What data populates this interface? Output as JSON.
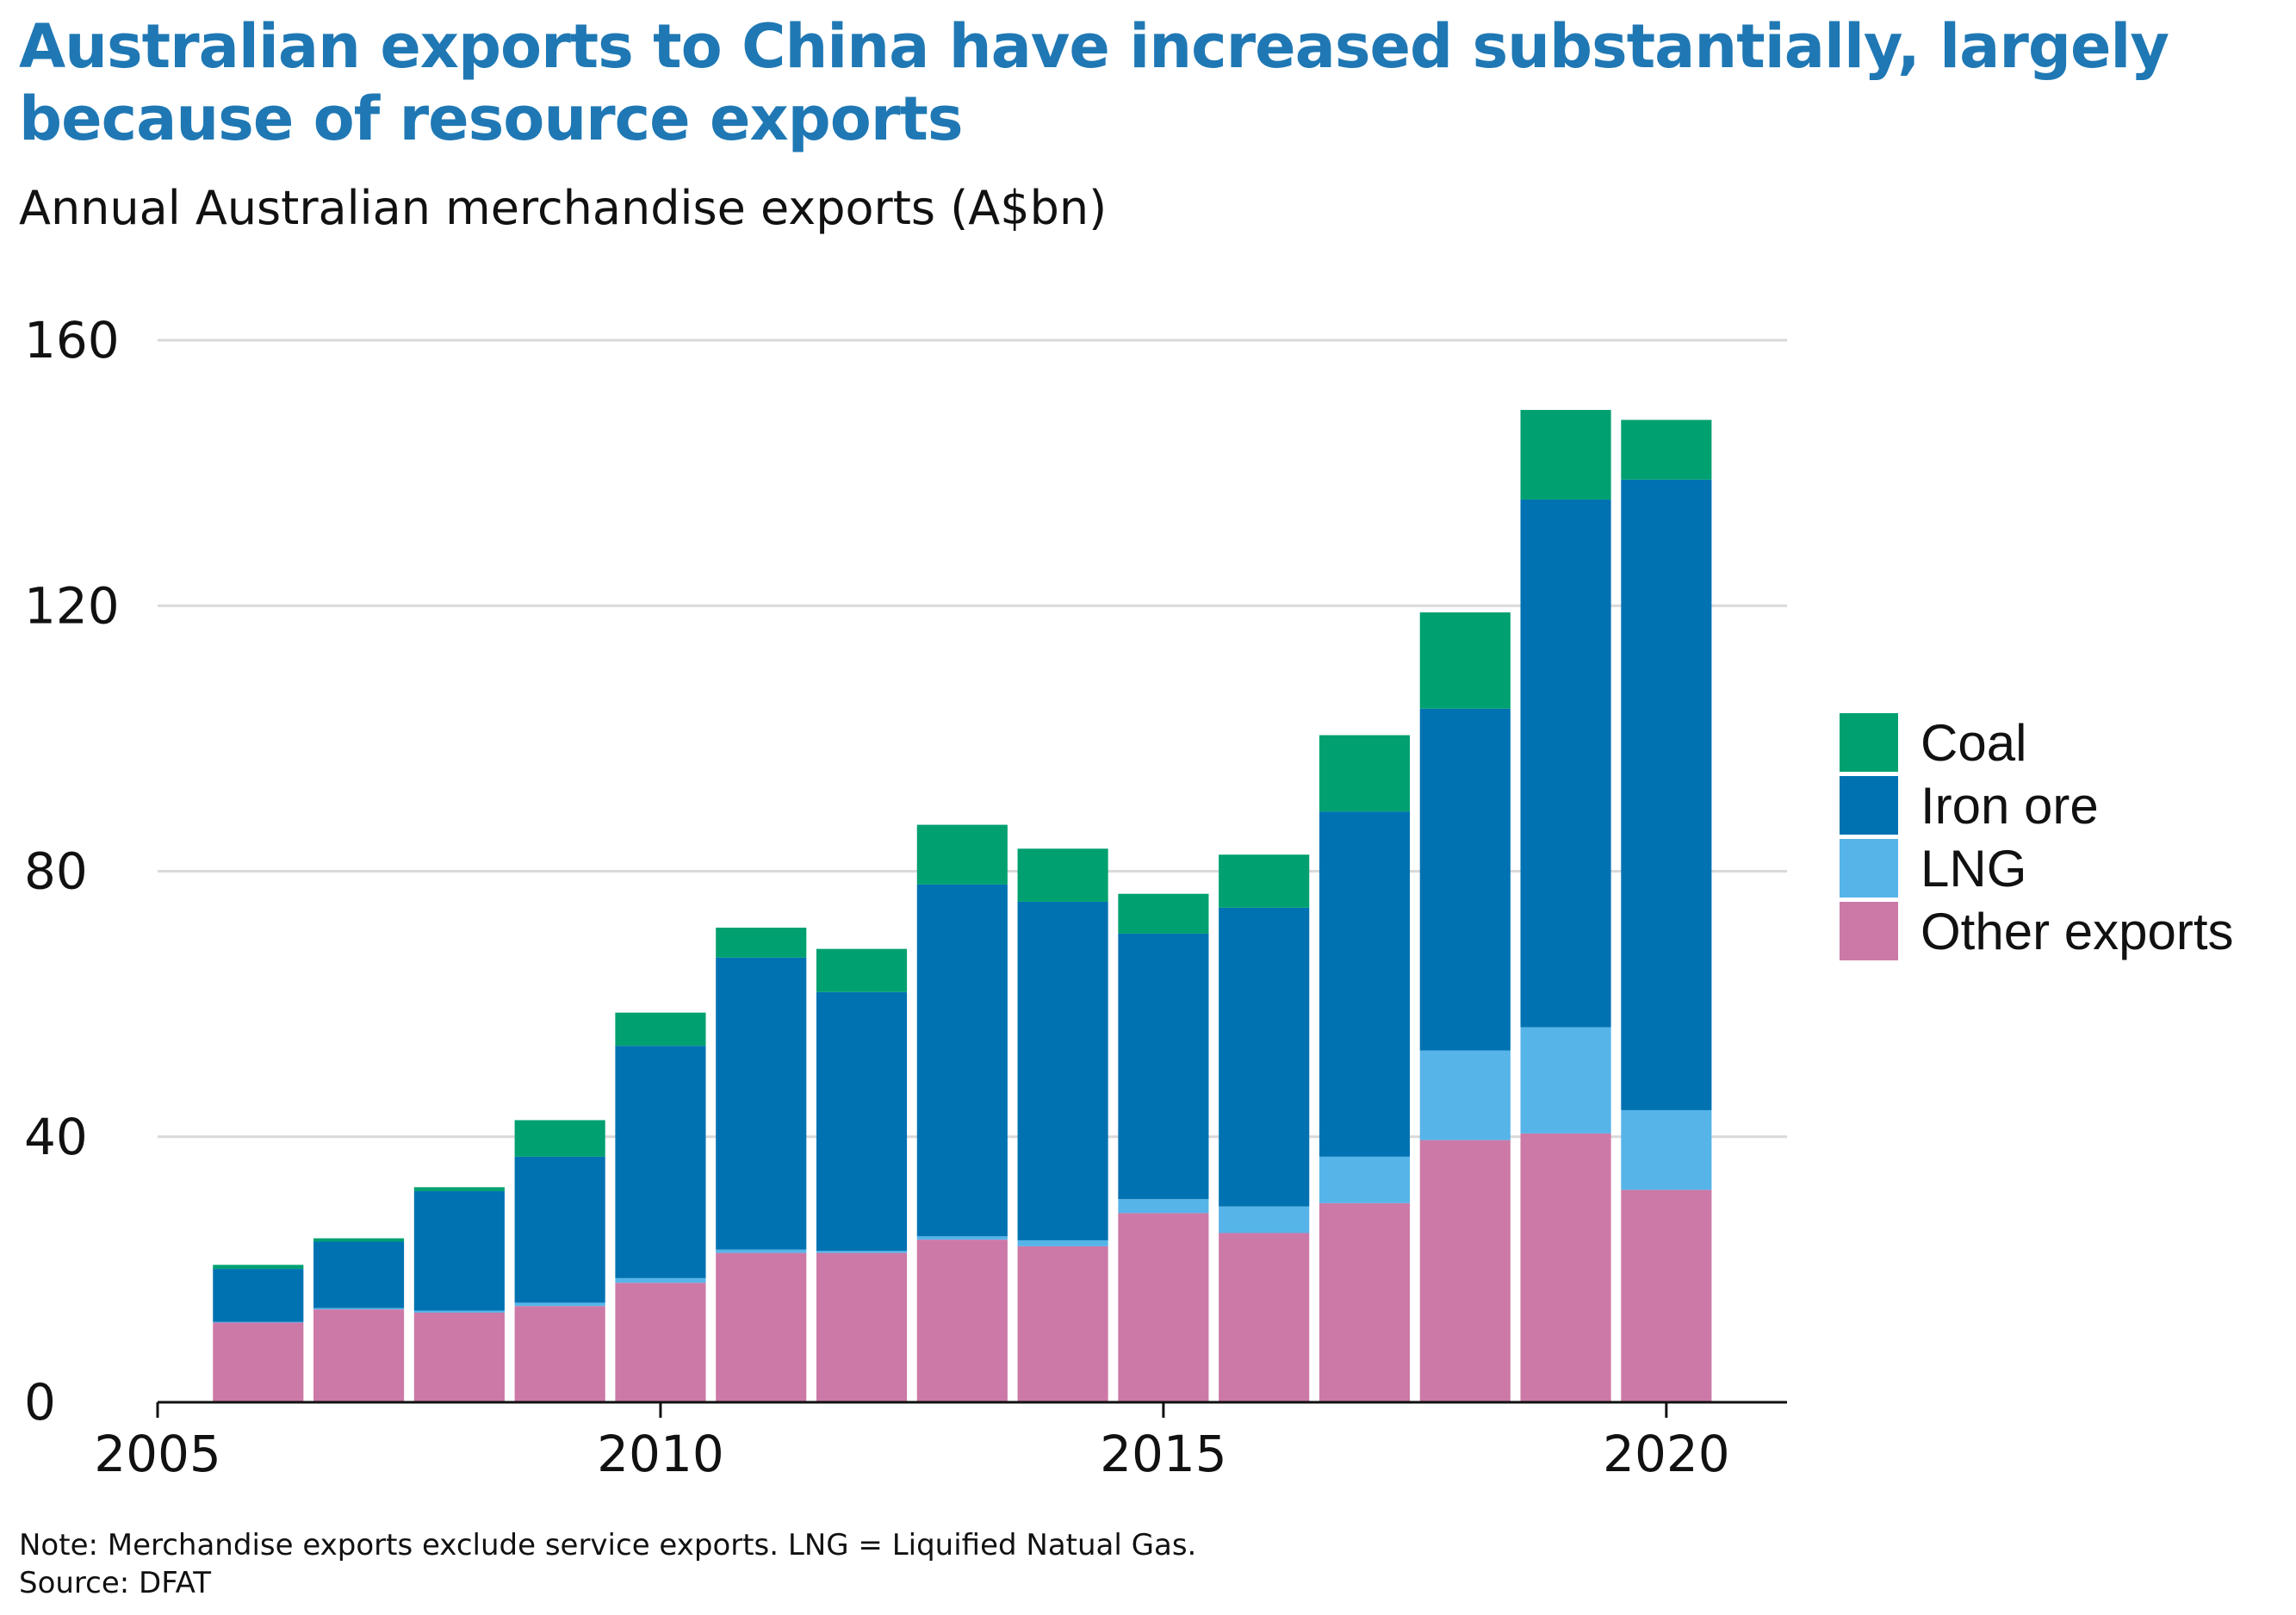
{
  "title": "Australian exports to China have increased substantially, largely because of resource exports",
  "subtitle": "Annual Australian merchandise exports (A$bn)",
  "note": "Note: Merchandise exports exclude service exports. LNG = Liquified Natual Gas.",
  "source": "Source: DFAT",
  "colors": {
    "Coal": "#00a071",
    "Iron ore": "#0072b2",
    "LNG": "#56b4e9",
    "Other exports": "#cc79a7",
    "grid": "#d9d9d9",
    "axis": "#111111"
  },
  "chart_data": {
    "type": "bar",
    "stacked": true,
    "x": [
      2006,
      2007,
      2008,
      2009,
      2010,
      2011,
      2012,
      2013,
      2014,
      2015,
      2016,
      2017,
      2018,
      2019,
      2020
    ],
    "series": [
      {
        "name": "Other exports",
        "values": [
          12,
          14,
          13.5,
          14.5,
          18,
          22.5,
          22.5,
          24.5,
          23.5,
          28.5,
          25.5,
          30,
          39.5,
          40.5,
          32
        ]
      },
      {
        "name": "LNG",
        "values": [
          0.1,
          0.2,
          0.3,
          0.5,
          0.7,
          0.5,
          0.3,
          0.5,
          0.9,
          2.1,
          4,
          7,
          13.5,
          16,
          12
        ]
      },
      {
        "name": "Iron ore",
        "values": [
          8,
          10,
          18,
          22,
          35,
          44,
          39,
          53,
          51,
          40,
          45,
          52,
          51.5,
          79.5,
          95
        ]
      },
      {
        "name": "Coal",
        "values": [
          0.6,
          0.5,
          0.6,
          5.5,
          5,
          4.5,
          6.5,
          9,
          8,
          6,
          8,
          11.5,
          14.5,
          13.5,
          9
        ]
      }
    ],
    "xticks": [
      "2005",
      "2010",
      "2015",
      "2020"
    ],
    "xlim": [
      2005,
      2021.2
    ],
    "yticks": [
      "0",
      "40",
      "80",
      "120",
      "160"
    ],
    "ylim": [
      0,
      160
    ],
    "grid": "horizontal",
    "legend": {
      "position": "right",
      "entries": [
        "Coal",
        "Iron ore",
        "LNG",
        "Other exports"
      ]
    }
  }
}
